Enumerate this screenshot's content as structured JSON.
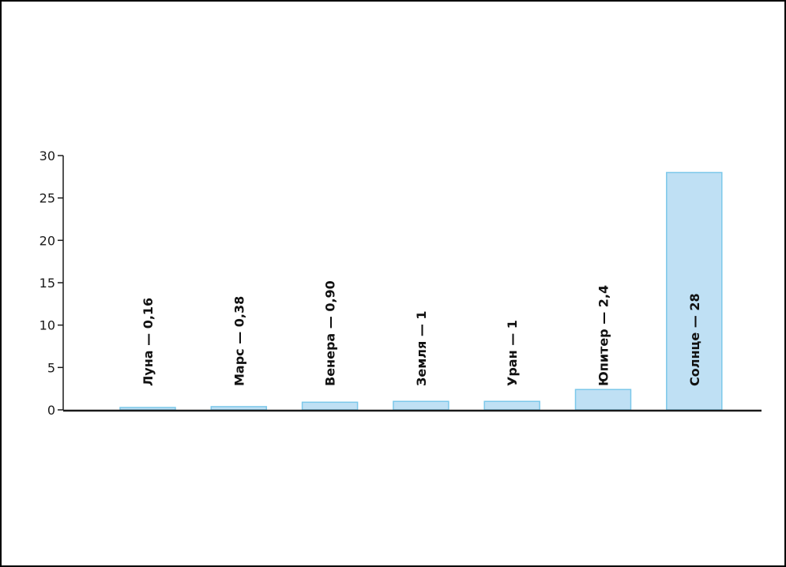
{
  "chart_data": {
    "type": "bar",
    "title": "",
    "xlabel": "",
    "ylabel": "",
    "categories": [
      "Луна",
      "Марс",
      "Венера",
      "Земля",
      "Уран",
      "Юпитер",
      "Солнце"
    ],
    "values": [
      0.16,
      0.38,
      0.9,
      1,
      1,
      2.4,
      28
    ],
    "bar_labels": [
      "Луна — 0,16",
      "Марс — 0,38",
      "Венера — 0,90",
      "Земля — 1",
      "Уран — 1",
      "Юпитер — 2,4",
      "Солнце — 28"
    ],
    "ylim": [
      0,
      30
    ],
    "yticks": [
      0,
      5,
      10,
      15,
      20,
      25,
      30
    ],
    "ytick_labels": [
      "0",
      "5",
      "10",
      "15",
      "20",
      "25",
      "30"
    ],
    "grid": false,
    "colors": {
      "bar_fill": "#bfe0f4",
      "bar_stroke": "#7cc8ea",
      "axis": "#1a1a1a",
      "frame": "#000000"
    }
  }
}
